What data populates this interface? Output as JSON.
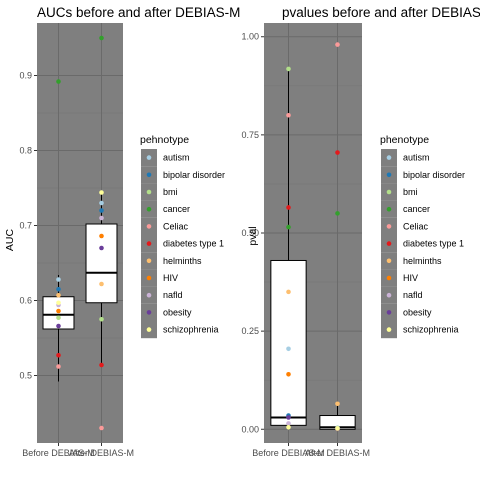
{
  "chart_data": [
    {
      "type": "box-strip",
      "title": "AUCs before and after DEBIAS-M",
      "xlabel": "",
      "ylabel": "AUC",
      "categories": [
        "Before DEBIAS-M",
        "After DEBIAS-M"
      ],
      "ylim": [
        0.41,
        0.97
      ],
      "yticks": [
        0.5,
        0.6,
        0.7,
        0.8,
        0.9
      ],
      "ytick_labels": [
        "0.5",
        "0.6",
        "0.7",
        "0.8",
        "0.9"
      ],
      "grid": true,
      "boxes": [
        {
          "category": "Before DEBIAS-M",
          "q1": 0.562,
          "median": 0.581,
          "q3": 0.605,
          "whisker_low": 0.492,
          "whisker_high": 0.634
        },
        {
          "category": "After DEBIAS-M",
          "q1": 0.597,
          "median": 0.637,
          "q3": 0.702,
          "whisker_low": 0.514,
          "whisker_high": 0.744
        }
      ],
      "series": [
        {
          "name": "autism",
          "values": [
            0.628,
            0.73
          ]
        },
        {
          "name": "bipolar disorder",
          "values": [
            0.615,
            0.72
          ]
        },
        {
          "name": "bmi",
          "values": [
            0.577,
            0.575
          ]
        },
        {
          "name": "cancer",
          "values": [
            0.892,
            0.95
          ]
        },
        {
          "name": "Celiac",
          "values": [
            0.512,
            0.43
          ]
        },
        {
          "name": "diabetes type 1",
          "values": [
            0.527,
            0.514
          ]
        },
        {
          "name": "helminths",
          "values": [
            0.607,
            0.622
          ]
        },
        {
          "name": "HIV",
          "values": [
            0.586,
            0.686
          ]
        },
        {
          "name": "nafld",
          "values": [
            0.594,
            0.71
          ]
        },
        {
          "name": "obesity",
          "values": [
            0.566,
            0.67
          ]
        },
        {
          "name": "schizophrenia",
          "values": [
            0.597,
            0.744
          ]
        }
      ],
      "legend_title": "pehnotype",
      "legend_position": "right"
    },
    {
      "type": "box-strip",
      "title": "pvalues before and after DEBIAS-M",
      "xlabel": "",
      "ylabel": "pval",
      "categories": [
        "Before DEBIAS-M",
        "After DEBIAS-M"
      ],
      "ylim": [
        -0.035,
        1.035
      ],
      "yticks": [
        0,
        0.25,
        0.5,
        0.75,
        1.0
      ],
      "ytick_labels": [
        "0.00",
        "0.25",
        "0.50",
        "0.75",
        "1.00"
      ],
      "grid": true,
      "boxes": [
        {
          "category": "Before DEBIAS-M",
          "q1": 0.01,
          "median": 0.03,
          "q3": 0.43,
          "whisker_low": 0.0,
          "whisker_high": 0.92
        },
        {
          "category": "After DEBIAS-M",
          "q1": 0.0,
          "median": 0.005,
          "q3": 0.035,
          "whisker_low": 0.0,
          "whisker_high": 0.07
        }
      ],
      "series": [
        {
          "name": "autism",
          "values": [
            0.205,
            0.004
          ]
        },
        {
          "name": "bipolar disorder",
          "values": [
            0.035,
            0.002
          ]
        },
        {
          "name": "bmi",
          "values": [
            0.918,
            0.003
          ]
        },
        {
          "name": "cancer",
          "values": [
            0.515,
            0.55
          ]
        },
        {
          "name": "Celiac",
          "values": [
            0.8,
            0.98
          ]
        },
        {
          "name": "diabetes type 1",
          "values": [
            0.565,
            0.705
          ]
        },
        {
          "name": "helminths",
          "values": [
            0.35,
            0.065
          ]
        },
        {
          "name": "HIV",
          "values": [
            0.14,
            0.001
          ]
        },
        {
          "name": "nafld",
          "values": [
            0.015,
            0.002
          ]
        },
        {
          "name": "obesity",
          "values": [
            0.03,
            0.001
          ]
        },
        {
          "name": "schizophrenia",
          "values": [
            0.005,
            0.002
          ]
        }
      ],
      "legend_title": "phenotype",
      "legend_position": "right"
    }
  ],
  "colors": {
    "panel_bg": "#7f7f7f",
    "grid_major": "#6a6a6a",
    "grid_minor": "#777777",
    "box_fill": "#ffffff",
    "box_line": "#000000",
    "autism": "#a6cee3",
    "bipolar disorder": "#1f78b4",
    "bmi": "#b2df8a",
    "cancer": "#33a02c",
    "Celiac": "#fb9a99",
    "diabetes type 1": "#e31a1c",
    "helminths": "#fdbf6f",
    "HIV": "#ff7f00",
    "nafld": "#cab2d6",
    "obesity": "#6a3d9a",
    "schizophrenia": "#ffff99"
  }
}
